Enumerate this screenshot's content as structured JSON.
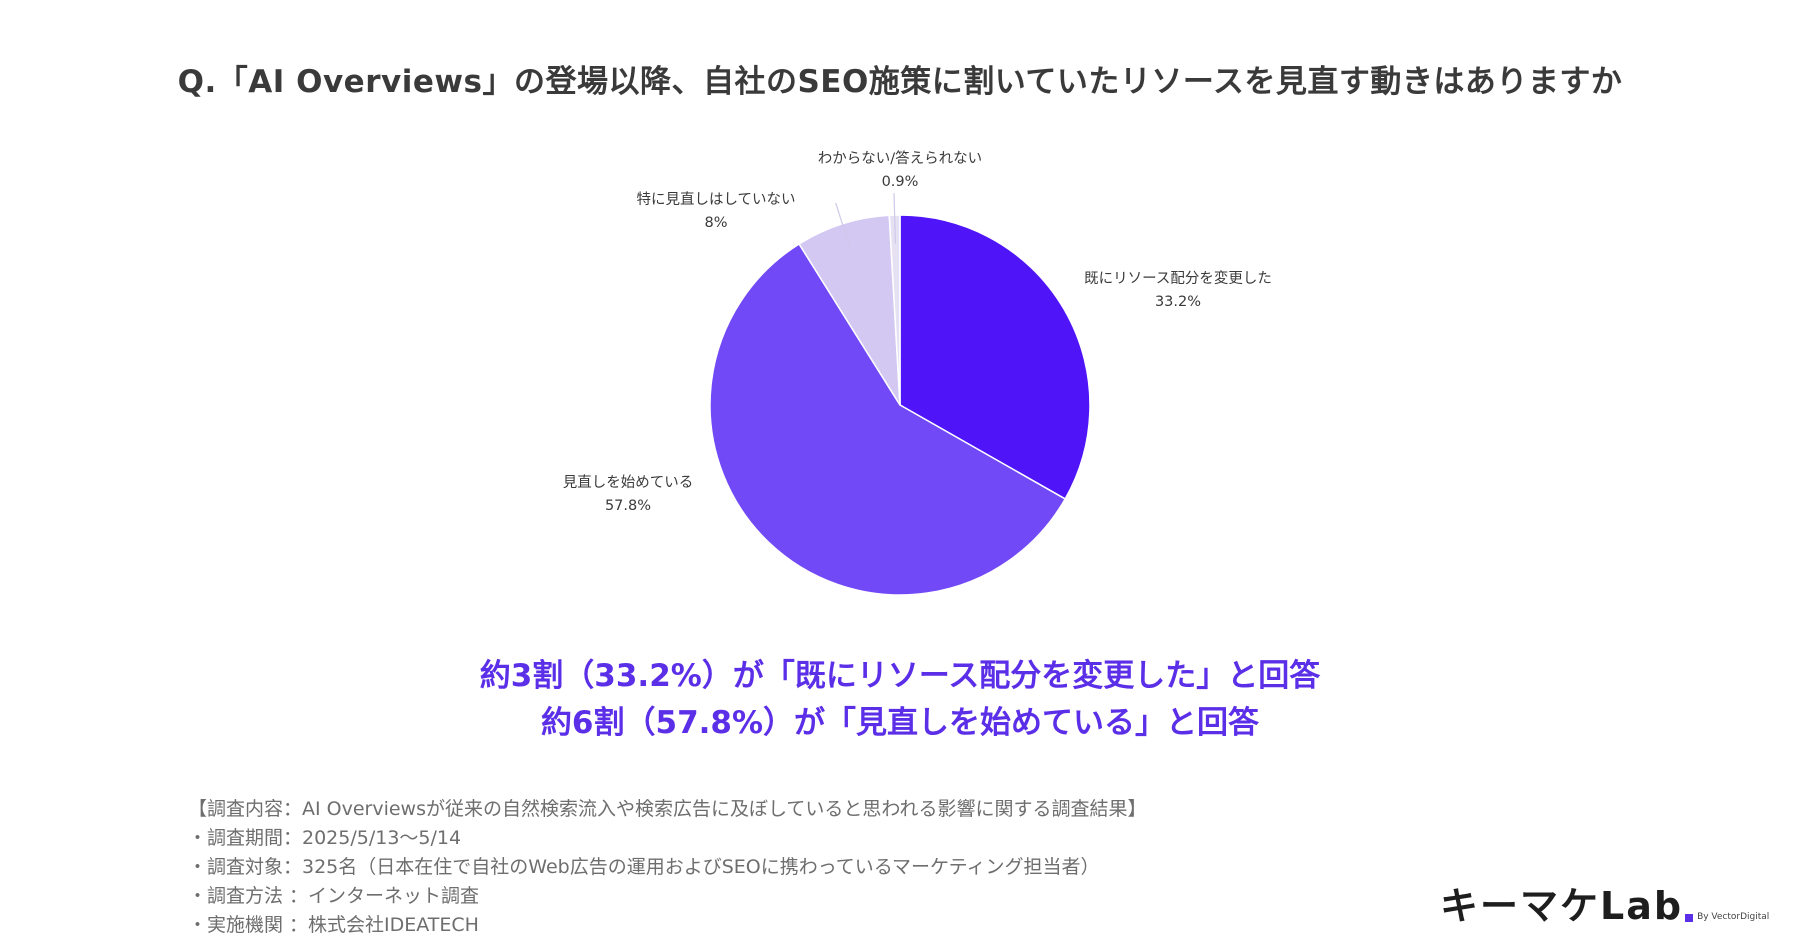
{
  "title": "Q.「AI Overviews」の登場以降、自社のSEO施策に割いていたリソースを見直す動きはありますか",
  "chart_data": {
    "type": "pie",
    "slices": [
      {
        "label": "既にリソース配分を変更した",
        "value": 33.2,
        "value_label": "33.2%",
        "color": "#4f14f8"
      },
      {
        "label": "見直しを始めている",
        "value": 57.8,
        "value_label": "57.8%",
        "color": "#7249f7"
      },
      {
        "label": "特に見直しはしていない",
        "value": 8,
        "value_label": "8%",
        "color": "#d3c8f2"
      },
      {
        "label": "わからない/答えられない",
        "value": 0.9,
        "value_label": "0.9%",
        "color": "#e6e1f2"
      }
    ],
    "legend": "none"
  },
  "headline": {
    "line1": "約3割（33.2%）が「既にリソース配分を変更した」と回答",
    "line2": "約6割（57.8%）が「見直しを始めている」と回答"
  },
  "notes": [
    "【調査内容：AI Overviewsが従来の自然検索流入や検索広告に及ぼしていると思われる影響に関する調査結果】",
    "・調査期間：2025/5/13〜5/14",
    "・調査対象：325名（日本在住で自社のWeb広告の運用およびSEOに携わっているマーケティング担当者）",
    "・調査方法 ：インターネット調査",
    "・実施機関 ：株式会社IDEATECH"
  ],
  "logo": {
    "text": "キーマケLab",
    "sub": "By VectorDigital"
  }
}
